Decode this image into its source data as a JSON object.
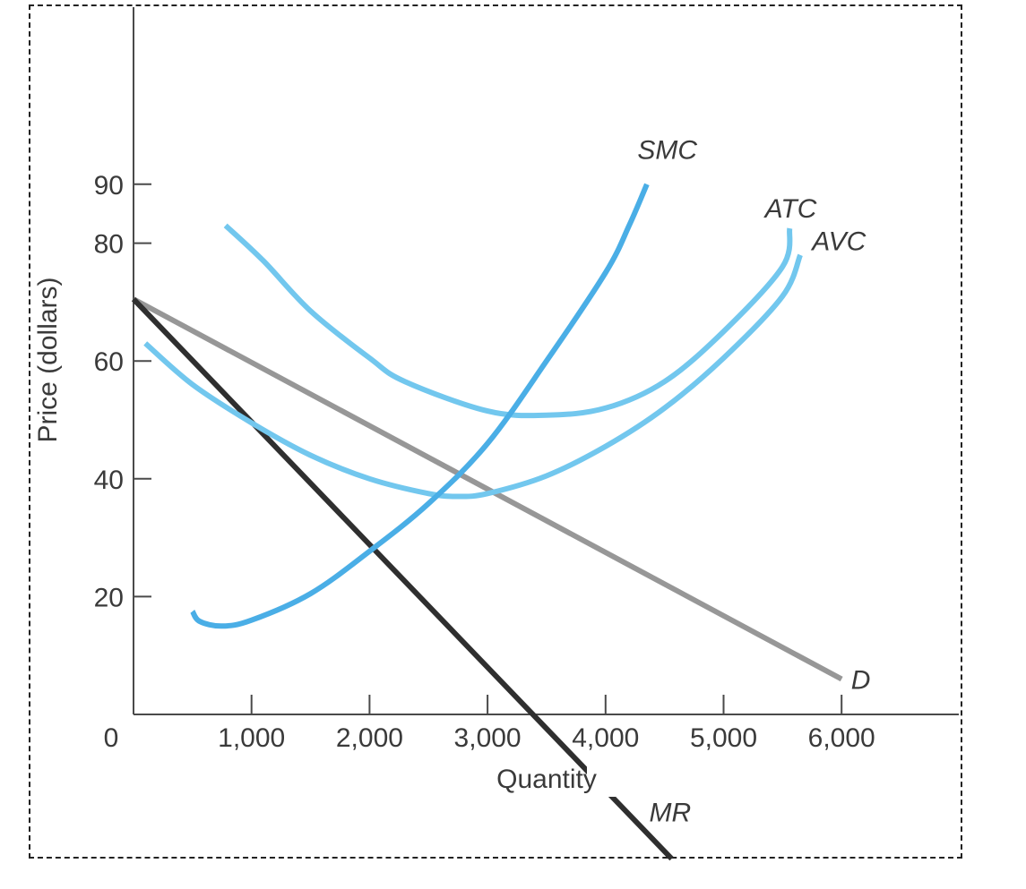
{
  "chart_data": {
    "type": "line",
    "xlabel": "Quantity",
    "ylabel": "Price (dollars)",
    "origin_label": "0",
    "xlim": [
      0,
      7000
    ],
    "ylim": [
      0,
      100
    ],
    "x_ticks": [
      {
        "value": 1000,
        "label": "1,000"
      },
      {
        "value": 2000,
        "label": "2,000"
      },
      {
        "value": 3000,
        "label": "3,000"
      },
      {
        "value": 4000,
        "label": "4,000"
      },
      {
        "value": 5000,
        "label": "5,000"
      },
      {
        "value": 6000,
        "label": "6,000"
      }
    ],
    "y_ticks": [
      {
        "value": 20,
        "label": "20"
      },
      {
        "value": 40,
        "label": "40"
      },
      {
        "value": 60,
        "label": "60"
      },
      {
        "value": 80,
        "label": "80"
      },
      {
        "value": 90,
        "label": "90"
      }
    ],
    "series": [
      {
        "name": "SMC",
        "color": "#4aaee6",
        "points": [
          [
            500,
            17.5
          ],
          [
            560,
            15.8
          ],
          [
            750,
            15
          ],
          [
            1000,
            16
          ],
          [
            1500,
            20.5
          ],
          [
            2000,
            27.7
          ],
          [
            2500,
            35.8
          ],
          [
            3000,
            46
          ],
          [
            3500,
            60
          ],
          [
            4000,
            75
          ],
          [
            4200,
            83
          ],
          [
            4350,
            90
          ]
        ],
        "label_at": [
          4270,
          96
        ]
      },
      {
        "name": "ATC",
        "color": "#72c7ee",
        "points": [
          [
            780,
            83
          ],
          [
            1100,
            77
          ],
          [
            1500,
            68.5
          ],
          [
            2000,
            60.5
          ],
          [
            2300,
            56.5
          ],
          [
            3000,
            51.5
          ],
          [
            3500,
            50.8
          ],
          [
            4000,
            52
          ],
          [
            4500,
            56.5
          ],
          [
            5000,
            65
          ],
          [
            5500,
            76
          ],
          [
            5560,
            82.5
          ]
        ],
        "label_at": [
          5350,
          86
        ]
      },
      {
        "name": "AVC",
        "color": "#72c7ee",
        "points": [
          [
            100,
            63
          ],
          [
            500,
            56
          ],
          [
            1000,
            49.5
          ],
          [
            1500,
            44
          ],
          [
            2000,
            40
          ],
          [
            2500,
            37.5
          ],
          [
            2750,
            37
          ],
          [
            3000,
            37.5
          ],
          [
            3500,
            40.5
          ],
          [
            4000,
            45.5
          ],
          [
            4500,
            52
          ],
          [
            5000,
            60.5
          ],
          [
            5500,
            71
          ],
          [
            5650,
            78
          ]
        ],
        "label_at": [
          5750,
          80.5
        ]
      },
      {
        "name": "D",
        "color": "#979797",
        "points": [
          [
            0,
            70.5
          ],
          [
            6000,
            6
          ]
        ],
        "label_at": [
          6080,
          6
        ]
      },
      {
        "name": "MR",
        "color": "#2f2f2f",
        "points": [
          [
            0,
            70.5
          ],
          [
            4560,
            -24.5
          ]
        ],
        "label_at": [
          4370,
          -16.5
        ]
      }
    ]
  }
}
